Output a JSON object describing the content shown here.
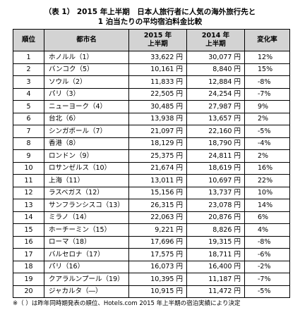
{
  "title_line1": "（表 1） 2015 年上半期　日本人旅行者に人気の海外旅行先と",
  "title_line2": "1 泊当たりの平均宿泊料金比較",
  "headers": {
    "rank": "順位",
    "city": "都市名",
    "h2015_line1": "2015 年",
    "h2015_line2": "上半期",
    "h2014_line1": "2014 年",
    "h2014_line2": "上半期",
    "change": "変化率"
  },
  "rows": [
    {
      "rank": "1",
      "city": "ホノルル（1）",
      "v2015": "33,622 円",
      "v2014": "30,077 円",
      "change": "12%"
    },
    {
      "rank": "2",
      "city": "バンコク（5）",
      "v2015": "10,161 円",
      "v2014": "8,840 円",
      "change": "15%"
    },
    {
      "rank": "3",
      "city": "ソウル（2）",
      "v2015": "11,833 円",
      "v2014": "12,884 円",
      "change": "-8%"
    },
    {
      "rank": "4",
      "city": "パリ（3）",
      "v2015": "22,505 円",
      "v2014": "24,254 円",
      "change": "-7%"
    },
    {
      "rank": "5",
      "city": "ニューヨーク（4）",
      "v2015": "30,485 円",
      "v2014": "27,987 円",
      "change": "9%"
    },
    {
      "rank": "6",
      "city": "台北（6）",
      "v2015": "13,938 円",
      "v2014": "13,657 円",
      "change": "2%"
    },
    {
      "rank": "7",
      "city": "シンガポール（7）",
      "v2015": "21,097 円",
      "v2014": "22,160 円",
      "change": "-5%"
    },
    {
      "rank": "8",
      "city": "香港（8）",
      "v2015": "18,129 円",
      "v2014": "18,790 円",
      "change": "-4%"
    },
    {
      "rank": "9",
      "city": "ロンドン（9）",
      "v2015": "25,375 円",
      "v2014": "24,811 円",
      "change": "2%"
    },
    {
      "rank": "10",
      "city": "ロサンゼルス（10）",
      "v2015": "21,674 円",
      "v2014": "18,619 円",
      "change": "16%"
    },
    {
      "rank": "11",
      "city": "上海（11）",
      "v2015": "13,011 円",
      "v2014": "10,697 円",
      "change": "22%"
    },
    {
      "rank": "12",
      "city": "ラスベガス（12）",
      "v2015": "15,156 円",
      "v2014": "13,737 円",
      "change": "10%"
    },
    {
      "rank": "13",
      "city": "サンフランシスコ（13）",
      "v2015": "26,315 円",
      "v2014": "23,078 円",
      "change": "14%"
    },
    {
      "rank": "14",
      "city": "ミラノ（14）",
      "v2015": "22,063 円",
      "v2014": "20,876 円",
      "change": "6%"
    },
    {
      "rank": "15",
      "city": "ホーチーミン（15）",
      "v2015": "9,221 円",
      "v2014": "8,826 円",
      "change": "4%"
    },
    {
      "rank": "16",
      "city": "ローマ（18）",
      "v2015": "17,696 円",
      "v2014": "19,315 円",
      "change": "-8%"
    },
    {
      "rank": "17",
      "city": "バルセロナ（17）",
      "v2015": "17,575 円",
      "v2014": "18,711 円",
      "change": "-6%"
    },
    {
      "rank": "18",
      "city": "パリ（16）",
      "v2015": "16,073 円",
      "v2014": "16,400 円",
      "change": "-2%"
    },
    {
      "rank": "19",
      "city": "クアラルンプール（19）",
      "v2015": "10,395 円",
      "v2014": "11,187 円",
      "change": "-7%"
    },
    {
      "rank": "20",
      "city": "ジャカルタ（―）",
      "v2015": "10,915 円",
      "v2014": "11,472 円",
      "change": "-5%"
    }
  ],
  "footnote": "※（ ）は昨年同時期発表の順位、Hotels.com 2015 年上半期の宿泊実績により決定"
}
